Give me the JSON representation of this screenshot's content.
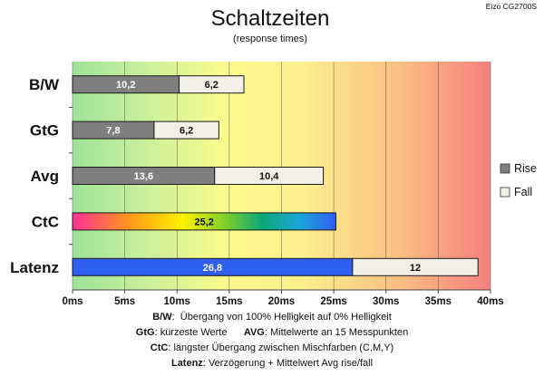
{
  "chart_data": {
    "type": "bar",
    "orientation": "horizontal",
    "stacked": true,
    "title": "Schaltzeiten",
    "subtitle": "(response times)",
    "model": "Eizo CG2700S",
    "categories": [
      "B/W",
      "GtG",
      "Avg",
      "CtC",
      "Latenz"
    ],
    "series": [
      {
        "name": "Rise",
        "values": [
          10.2,
          7.8,
          13.6,
          25.2,
          26.8
        ],
        "labels": [
          "10,2",
          "7,8",
          "13,6",
          "25,2",
          "26,8"
        ]
      },
      {
        "name": "Fall",
        "values": [
          6.2,
          6.2,
          10.4,
          0,
          12
        ],
        "labels": [
          "6,2",
          "6,2",
          "10,4",
          "",
          "12"
        ]
      }
    ],
    "bar_styles": [
      "gray",
      "gray",
      "gray",
      "rainbow",
      "blue"
    ],
    "xlim": [
      0,
      40
    ],
    "xticks": [
      "0ms",
      "5ms",
      "10ms",
      "15ms",
      "20ms",
      "25ms",
      "30ms",
      "35ms",
      "40ms"
    ],
    "legend_position": "right",
    "background": "gradient green-yellow-red",
    "colors": {
      "rise": "#7f7f7f",
      "fall": "#f2f0e6",
      "latency": "#2f5ff0"
    }
  },
  "footnotes": [
    {
      "key": "B/W",
      "text": "Übergang von 100% Helligkeit auf 0% Helligkeit"
    },
    {
      "key": "GtG",
      "text": "kürzeste Werte"
    },
    {
      "key": "AVG",
      "text": "Mittelwerte an 15 Messpunkten"
    },
    {
      "key": "CtC",
      "text": "längster Übergang zwischen Mischfarben (C,M,Y)"
    },
    {
      "key": "Latenz",
      "text": "Verzögerung + Mittelwert Avg rise/fall"
    }
  ]
}
